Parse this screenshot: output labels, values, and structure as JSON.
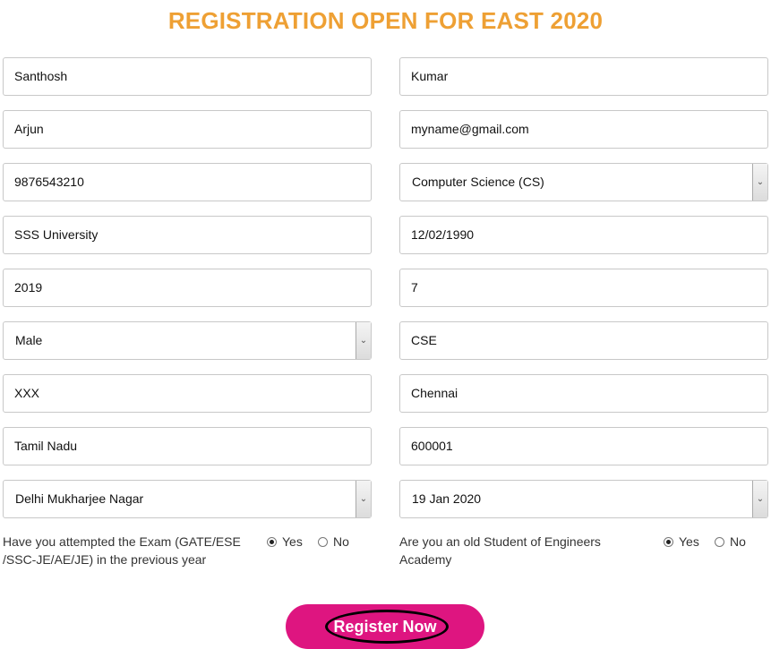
{
  "title": "REGISTRATION OPEN FOR EAST 2020",
  "fields": {
    "first_name": "Santhosh",
    "last_name": "Kumar",
    "father_name": "Arjun",
    "email": "myname@gmail.com",
    "phone": "9876543210",
    "stream": "Computer Science (CS)",
    "university": "SSS University",
    "dob": "12/02/1990",
    "passing_year": "2019",
    "semester": "7",
    "gender": "Male",
    "branch": "CSE",
    "address": "XXX",
    "city": "Chennai",
    "state": "Tamil Nadu",
    "pincode": "600001",
    "centre": "Delhi Mukharjee Nagar",
    "batch_date": "19 Jan 2020"
  },
  "questions": {
    "attempted": {
      "label_line1": "Have you attempted the Exam (GATE/ESE",
      "label_line2": "/SSC-JE/AE/JE) in the previous year",
      "yes": "Yes",
      "no": "No",
      "selected": "Yes"
    },
    "old_student": {
      "label_line1": "Are you an old Student of Engineers",
      "label_line2": "Academy",
      "yes": "Yes",
      "no": "No",
      "selected": "Yes"
    }
  },
  "register_button": "Register Now",
  "colors": {
    "title": "#eea034",
    "button": "#de1580"
  }
}
